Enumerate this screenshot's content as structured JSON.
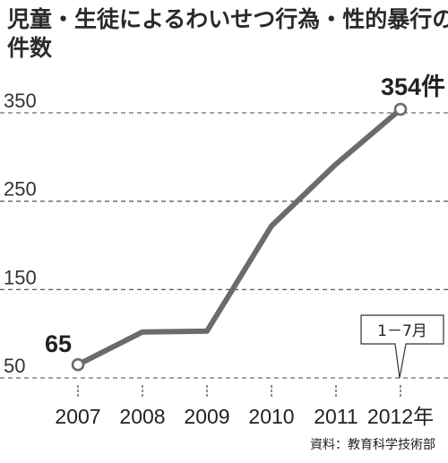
{
  "title_lines": [
    "児童・生徒によるわいせつ行為・性的暴行の",
    "件数"
  ],
  "source": "資料：教育科学技術部",
  "colors": {
    "line": "#6b6b6b",
    "grid": "#444444",
    "marker_fill": "#ffffff"
  },
  "chart_data": {
    "type": "line",
    "title": "児童・生徒によるわいせつ行為・性的暴行の件数",
    "categories": [
      "2007",
      "2008",
      "2009",
      "2010",
      "2011",
      "2012"
    ],
    "x_tick_labels": [
      "2007",
      "2008",
      "2009",
      "2010",
      "2011",
      "2012年"
    ],
    "series": [
      {
        "values": [
          65,
          102,
          103,
          222,
          292,
          354
        ]
      }
    ],
    "y_ticks": [
      50,
      150,
      250,
      350
    ],
    "ylim": [
      50,
      380
    ],
    "grid": true,
    "grid_style": "dashed",
    "data_labels": [
      {
        "index": 0,
        "text": "65"
      },
      {
        "index": 5,
        "text": "354件"
      }
    ],
    "annotations": [
      {
        "text": "1－7月",
        "category": "2012"
      }
    ]
  }
}
